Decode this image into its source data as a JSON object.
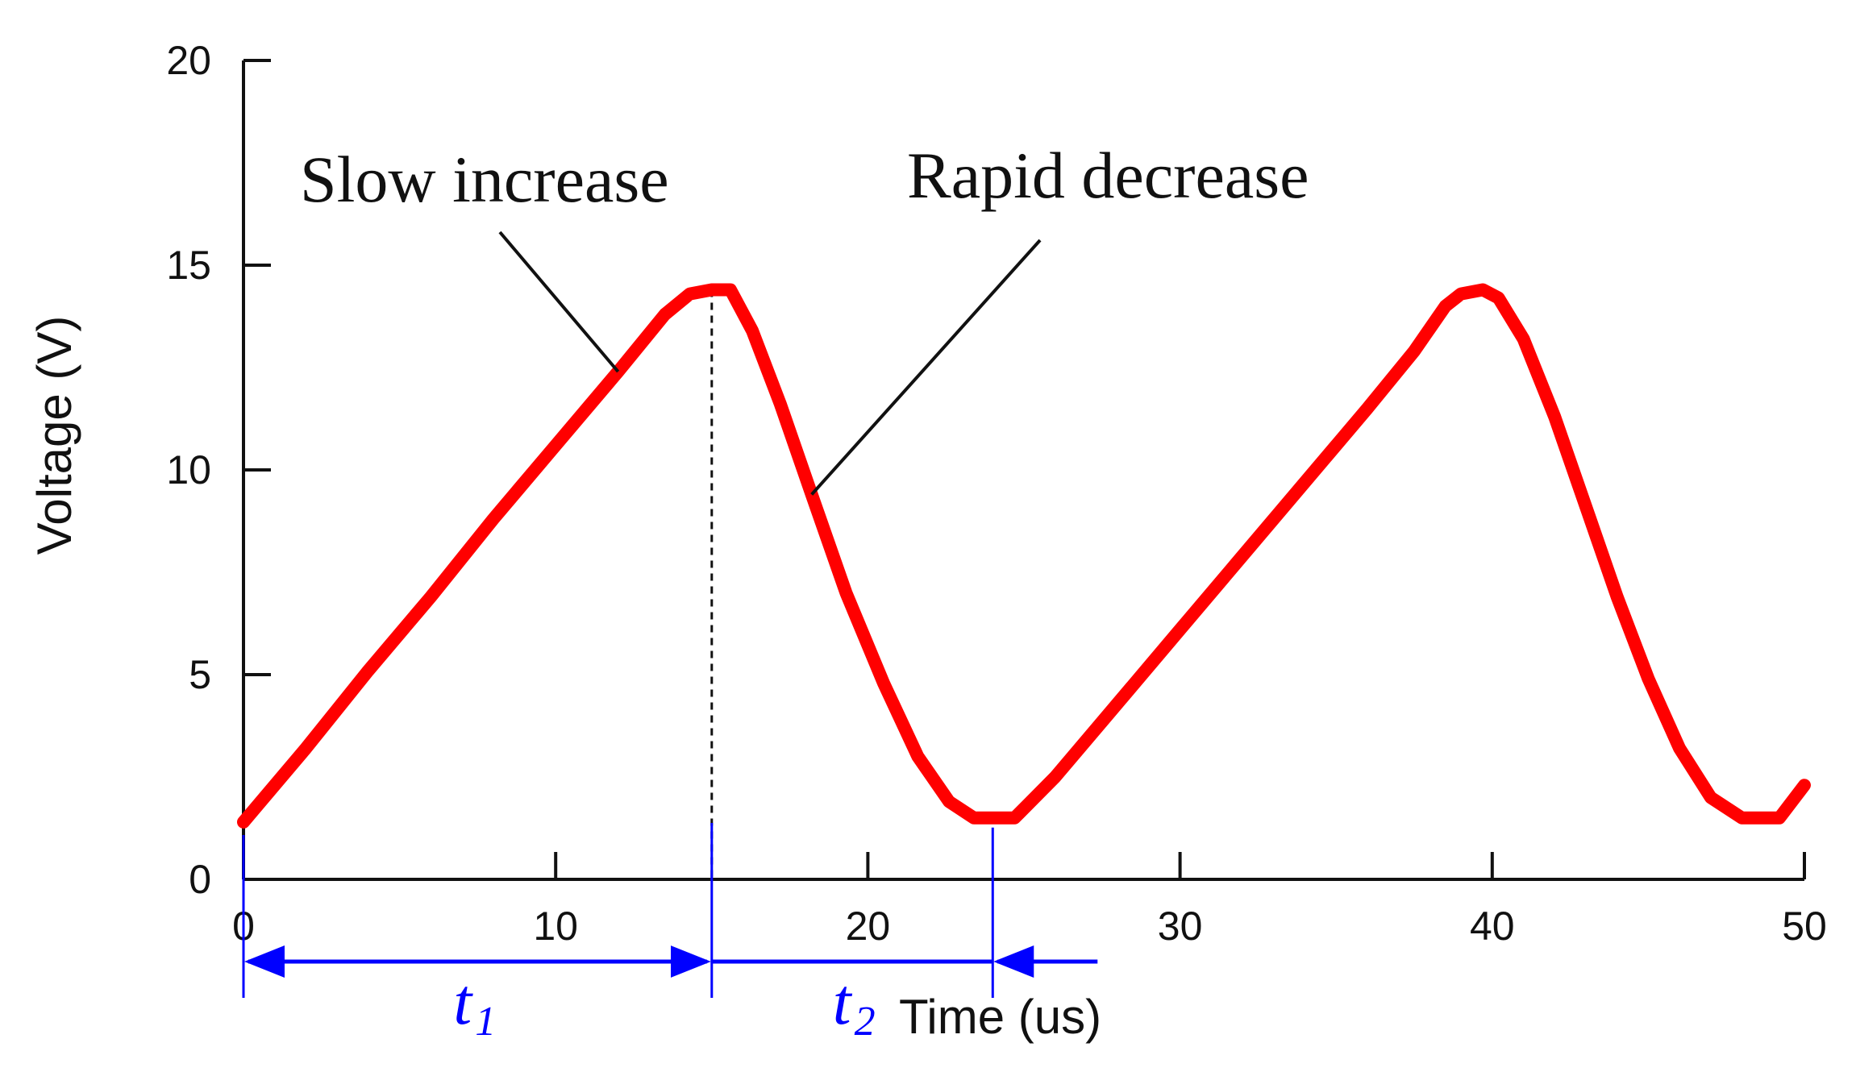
{
  "chart_data": {
    "type": "line",
    "xlabel": "Time (us)",
    "ylabel": "Voltage (V)",
    "xlim": [
      0,
      50
    ],
    "ylim": [
      0,
      20
    ],
    "x_ticks": [
      0,
      10,
      20,
      30,
      40,
      50
    ],
    "y_ticks": [
      0,
      5,
      10,
      15,
      20
    ],
    "x_tick_labels": [
      "0",
      "10",
      "20",
      "30",
      "40",
      "50"
    ],
    "y_tick_labels": [
      "0",
      "5",
      "10",
      "15",
      "20"
    ],
    "series": [
      {
        "name": "Voltage",
        "color": "#ff0000",
        "points": [
          [
            0.0,
            1.4
          ],
          [
            2.0,
            3.2
          ],
          [
            4.0,
            5.1
          ],
          [
            6.0,
            6.9
          ],
          [
            8.0,
            8.8
          ],
          [
            10.0,
            10.6
          ],
          [
            12.0,
            12.4
          ],
          [
            13.5,
            13.8
          ],
          [
            14.3,
            14.3
          ],
          [
            15.0,
            14.4
          ],
          [
            15.6,
            14.4
          ],
          [
            16.3,
            13.4
          ],
          [
            17.2,
            11.6
          ],
          [
            18.2,
            9.4
          ],
          [
            19.3,
            7.0
          ],
          [
            20.5,
            4.8
          ],
          [
            21.6,
            3.0
          ],
          [
            22.6,
            1.9
          ],
          [
            23.4,
            1.5
          ],
          [
            24.7,
            1.5
          ],
          [
            26.0,
            2.5
          ],
          [
            28.0,
            4.3
          ],
          [
            30.0,
            6.1
          ],
          [
            32.0,
            7.9
          ],
          [
            34.0,
            9.7
          ],
          [
            36.0,
            11.5
          ],
          [
            37.5,
            12.9
          ],
          [
            38.5,
            14.0
          ],
          [
            39.0,
            14.3
          ],
          [
            39.7,
            14.4
          ],
          [
            40.2,
            14.2
          ],
          [
            41.0,
            13.2
          ],
          [
            42.0,
            11.3
          ],
          [
            43.0,
            9.1
          ],
          [
            44.0,
            6.9
          ],
          [
            45.0,
            4.9
          ],
          [
            46.0,
            3.2
          ],
          [
            47.0,
            2.0
          ],
          [
            48.0,
            1.5
          ],
          [
            49.2,
            1.5
          ],
          [
            50.0,
            2.3
          ]
        ]
      }
    ],
    "annotations": [
      {
        "text": "Slow increase",
        "pointer_to": [
          12.0,
          12.4
        ]
      },
      {
        "text": "Rapid decrease",
        "pointer_to": [
          18.2,
          9.4
        ]
      }
    ],
    "reference_lines": [
      {
        "kind": "vertical-dashed",
        "x": 15.0,
        "y_from": 0,
        "y_to": 14.4
      },
      {
        "kind": "vertical-solid",
        "x": 0.0
      },
      {
        "kind": "vertical-solid",
        "x": 15.0
      },
      {
        "kind": "vertical-solid",
        "x": 24.0
      }
    ],
    "intervals": [
      {
        "label": "t",
        "subscript": "1",
        "x_from": 0.0,
        "x_to": 15.0,
        "arrows": "both"
      },
      {
        "label": "t",
        "subscript": "2",
        "x_from": 15.0,
        "x_to": 24.0,
        "arrows": "inward"
      }
    ],
    "colors": {
      "line": "#ff0000",
      "axis": "#111111",
      "interval": "#0000ff",
      "pointer": "#111111"
    }
  }
}
